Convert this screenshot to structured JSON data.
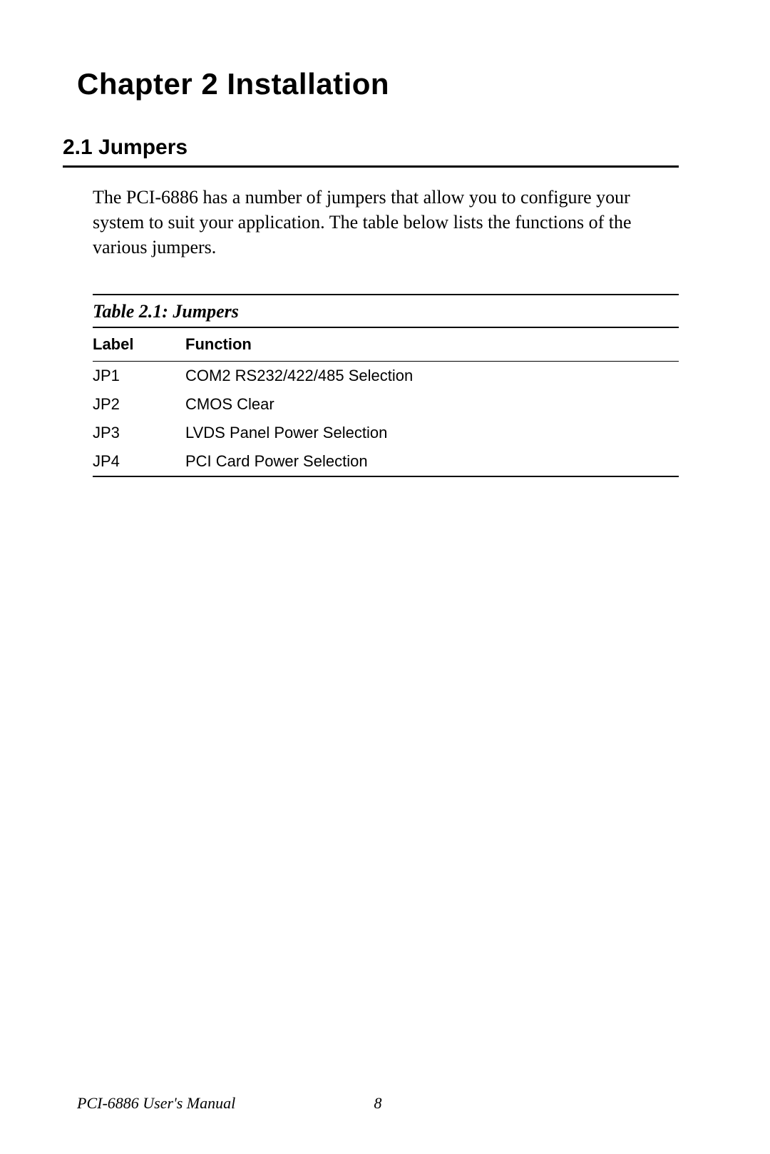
{
  "chapter": {
    "title": "Chapter 2  Installation"
  },
  "section": {
    "number_title": "2.1  Jumpers",
    "body": "The PCI-6886 has a number of jumpers that allow you to configure your system to suit your application. The table below lists the functions of the various jumpers."
  },
  "table": {
    "caption": "Table 2.1: Jumpers",
    "columns": [
      "Label",
      "Function"
    ],
    "rows": [
      [
        "JP1",
        "COM2 RS232/422/485 Selection"
      ],
      [
        "JP2",
        "CMOS Clear"
      ],
      [
        "JP3",
        "LVDS Panel Power Selection"
      ],
      [
        "JP4",
        "PCI Card Power Selection"
      ]
    ],
    "column_widths": [
      "130px",
      "auto"
    ]
  },
  "footer": {
    "manual_title": "PCI-6886 User's Manual",
    "page_number": "8"
  },
  "styles": {
    "page_bg": "#ffffff",
    "text_color": "#000000",
    "rule_color": "#000000",
    "chapter_fontsize": 42,
    "section_fontsize": 30,
    "body_fontsize": 26,
    "table_fontsize": 22,
    "footer_fontsize": 22
  }
}
